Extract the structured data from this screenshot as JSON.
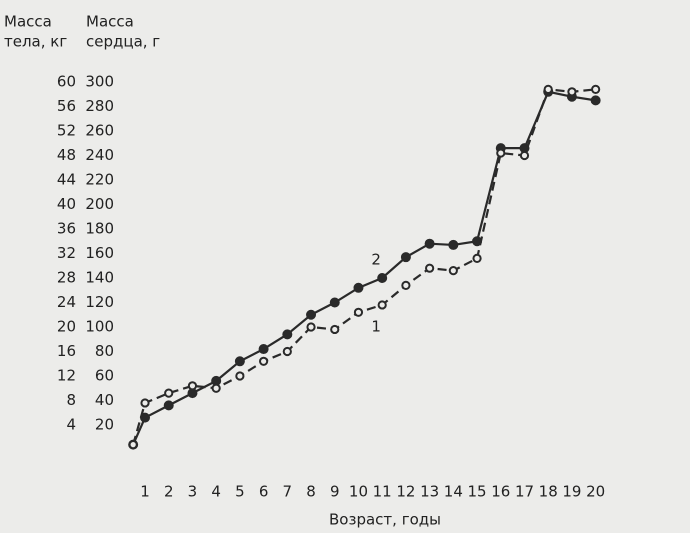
{
  "chart_data": {
    "type": "line",
    "x_label": "Возраст, годы",
    "y_label": [
      "Масса",
      "сердца, г"
    ],
    "y2_label": [
      "Масса",
      "тела, кг"
    ],
    "x": [
      0.5,
      1,
      2,
      3,
      4,
      5,
      6,
      7,
      8,
      9,
      10,
      11,
      12,
      13,
      14,
      15,
      16,
      17,
      18,
      19,
      20
    ],
    "xlim": [
      0,
      20.5
    ],
    "xticks": [
      1,
      2,
      3,
      4,
      5,
      6,
      7,
      8,
      9,
      10,
      11,
      12,
      13,
      14,
      15,
      16,
      17,
      18,
      19,
      20
    ],
    "ylim": [
      0,
      300
    ],
    "yticks": [
      20,
      40,
      60,
      80,
      100,
      120,
      140,
      160,
      180,
      200,
      220,
      240,
      260,
      280,
      300
    ],
    "y2lim": [
      0,
      60
    ],
    "y2ticks": [
      4,
      8,
      12,
      16,
      20,
      24,
      28,
      32,
      36,
      40,
      44,
      48,
      52,
      56,
      60
    ],
    "grid": false,
    "series": [
      {
        "name": "2",
        "color": "#2a2a2a",
        "style": "solid",
        "marker": "filled",
        "values": [
          4,
          26,
          36,
          46,
          56,
          72,
          82,
          94,
          110,
          120,
          132,
          140,
          157,
          168,
          167,
          170,
          246,
          246,
          292,
          288,
          285
        ]
      },
      {
        "name": "1",
        "color": "#2a2a2a",
        "style": "dashed",
        "marker": "open",
        "values": [
          4,
          38,
          46,
          52,
          50,
          60,
          72,
          80,
          100,
          98,
          112,
          118,
          134,
          148,
          146,
          156,
          242,
          240,
          294,
          292,
          294
        ]
      }
    ]
  }
}
